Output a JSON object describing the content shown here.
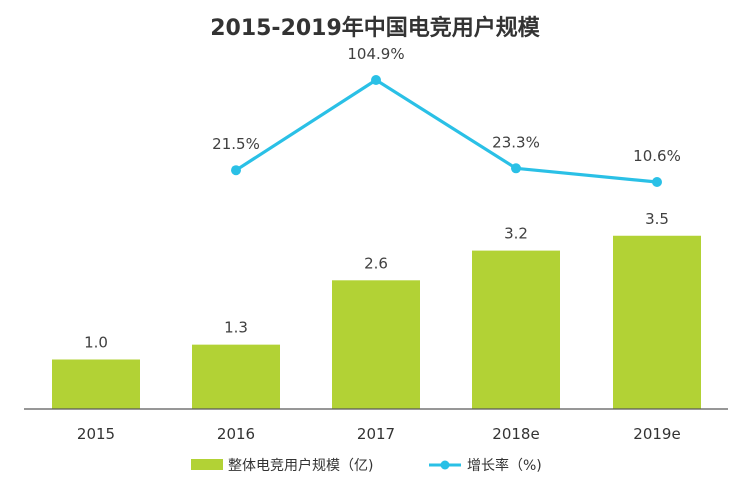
{
  "chart_data": {
    "type": "bar",
    "title": "2015-2019年中国电竞用户规模",
    "xlabel": "",
    "ylabel": "",
    "categories": [
      "2015",
      "2016",
      "2017",
      "2018e",
      "2019e"
    ],
    "series": [
      {
        "name": "整体电竞用户规模（亿)",
        "type": "bar",
        "values": [
          1.0,
          1.3,
          2.6,
          3.2,
          3.5
        ],
        "labels": [
          "1.0",
          "1.3",
          "2.6",
          "3.2",
          "3.5"
        ],
        "color": "#b2d235"
      },
      {
        "name": "增长率（%)",
        "type": "line",
        "values": [
          null,
          21.5,
          104.9,
          23.3,
          10.6
        ],
        "labels": [
          "",
          "21.5%",
          "104.9%",
          "23.3%",
          "10.6%"
        ],
        "color": "#2ac0e6"
      }
    ],
    "grid": false,
    "legend": "bottom"
  }
}
